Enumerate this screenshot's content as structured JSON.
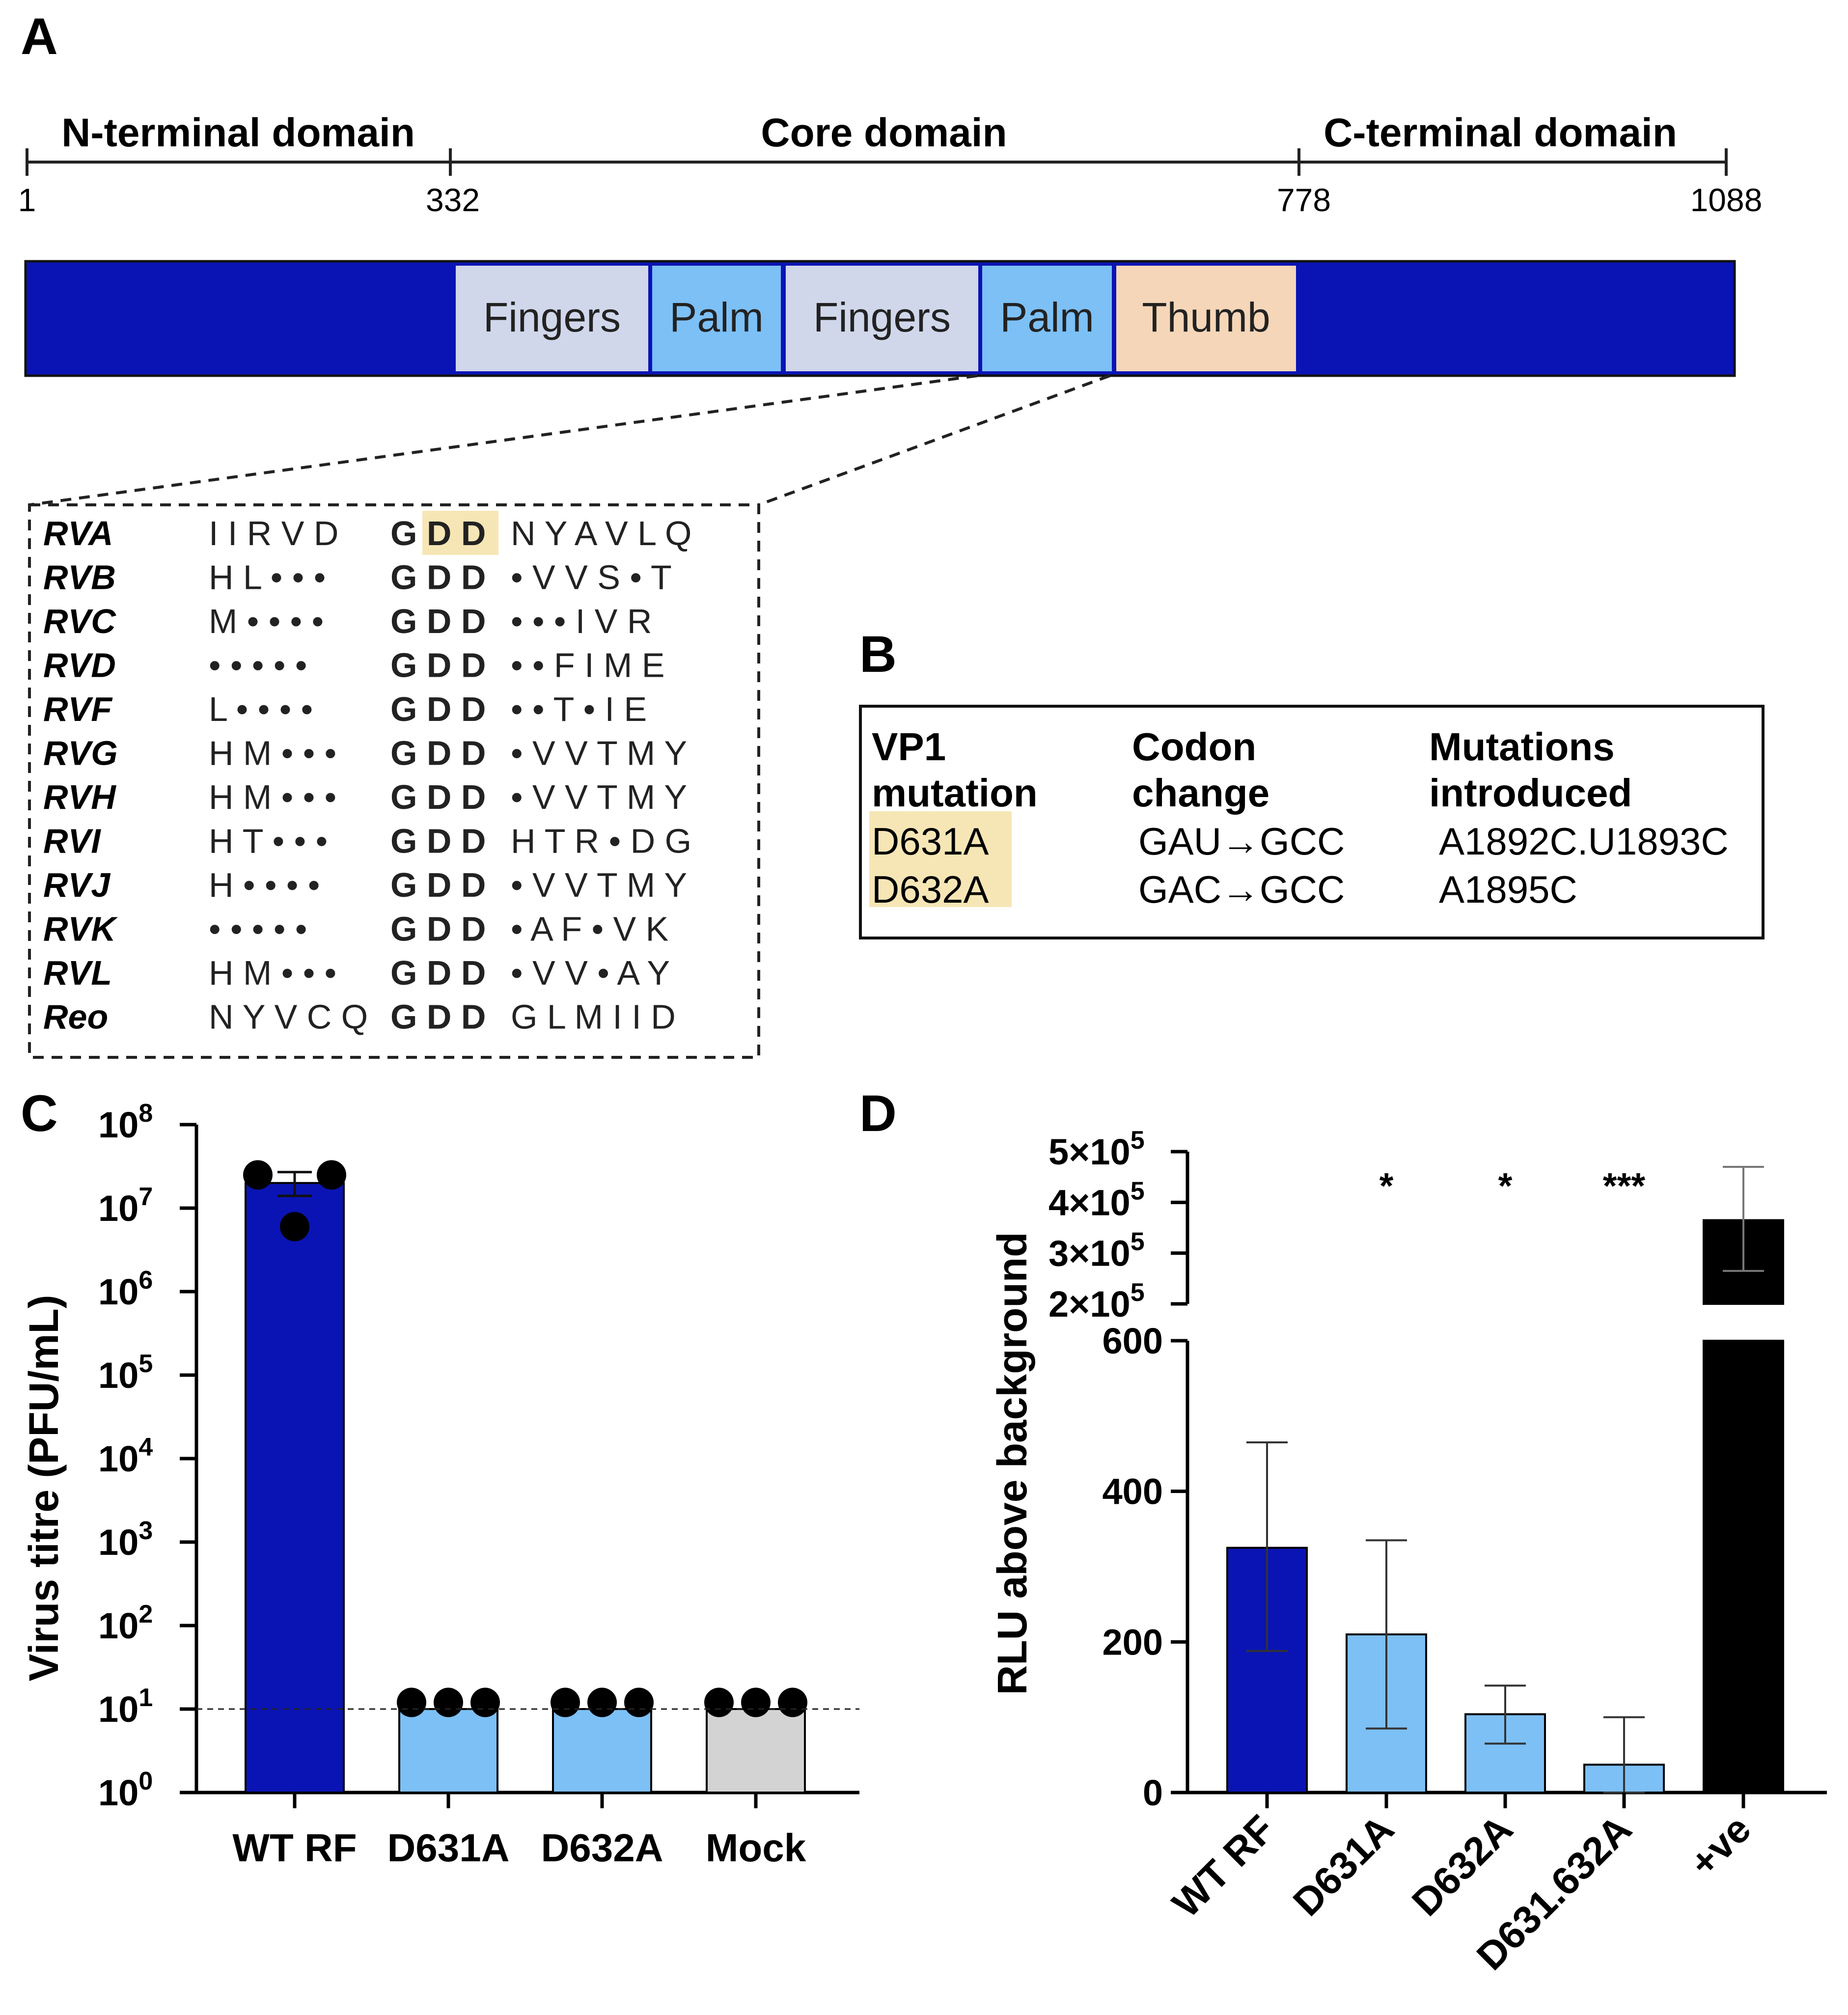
{
  "panels": {
    "a": "A",
    "b": "B",
    "c": "C",
    "d": "D"
  },
  "domain_map": {
    "domains": [
      {
        "label": "N-terminal domain",
        "start": 1,
        "end": 332
      },
      {
        "label": "Core domain",
        "start": 332,
        "end": 778
      },
      {
        "label": "C-terminal domain",
        "start": 778,
        "end": 1088
      }
    ],
    "positions": [
      "1",
      "332",
      "778",
      "1088"
    ],
    "segments": [
      "Fingers",
      "Palm",
      "Fingers",
      "Palm",
      "Thumb"
    ],
    "colors": {
      "terminal": "#0a14b4",
      "fingers": "#d0d7eb",
      "palm": "#7cc0f6",
      "thumb": "#f5d6b8"
    }
  },
  "alignment": {
    "rows": [
      {
        "name": "RVA",
        "pre": "I  I R V D",
        "motif": "G D D",
        "post": "N Y A  V L Q"
      },
      {
        "name": "RVB",
        "pre": "H L • • •",
        "motif": "G D D",
        "post": "• V V  S • T"
      },
      {
        "name": "RVC",
        "pre": "M • • • •",
        "motif": "G D D",
        "post": "• • •  I V R"
      },
      {
        "name": "RVD",
        "pre": "• • • • •",
        "motif": "G D D",
        "post": "• • F  I M E"
      },
      {
        "name": "RVF",
        "pre": "L • • • •",
        "motif": "G D D",
        "post": "• • T  •  I E"
      },
      {
        "name": "RVG",
        "pre": "H M • • •",
        "motif": "G D D",
        "post": "• V V  T M Y"
      },
      {
        "name": "RVH",
        "pre": "H M • • •",
        "motif": "G D D",
        "post": "• V V  T M Y"
      },
      {
        "name": "RVI",
        "pre": "H T • • •",
        "motif": "G D D",
        "post": "H T R  • D G"
      },
      {
        "name": "RVJ",
        "pre": "H • • • •",
        "motif": "G D D",
        "post": "• V V  T M Y"
      },
      {
        "name": "RVK",
        "pre": "• • • • •",
        "motif": "G D D",
        "post": "• A F  • V K"
      },
      {
        "name": "RVL",
        "pre": "H M • • •",
        "motif": "G D D",
        "post": "• V V  • A Y"
      },
      {
        "name": "Reo",
        "pre": "N Y V C Q",
        "motif": "G D D",
        "post": "G L M  I  I D"
      }
    ],
    "highlight_color": "#f7e6b5"
  },
  "mutation_table": {
    "headers": [
      [
        "VP1",
        "mutation"
      ],
      [
        "Codon",
        "change"
      ],
      [
        "Mutations",
        "introduced"
      ]
    ],
    "rows": [
      [
        "D631A",
        "GAU→GCC",
        "A1892C.U1893C"
      ],
      [
        "D632A",
        "GAC→GCC",
        "A1895C"
      ]
    ]
  },
  "chart_data": [
    {
      "type": "bar",
      "ylabel": "Virus titre (PFU/mL)",
      "yscale": "log",
      "ylim": [
        1,
        100000000
      ],
      "yticks": [
        "10",
        "10",
        "10",
        "10",
        "10",
        "10",
        "10",
        "10",
        "10"
      ],
      "yexponents": [
        "0",
        "1",
        "2",
        "3",
        "4",
        "5",
        "6",
        "7",
        "8"
      ],
      "categories": [
        "WT RF",
        "D631A",
        "D632A",
        "Mock"
      ],
      "values": [
        20000000,
        10,
        10,
        10
      ],
      "error": [
        [
          14000000,
          27000000
        ],
        null,
        null,
        null
      ],
      "points": [
        [
          25000000,
          25000000,
          6000000
        ],
        [
          12,
          12,
          12
        ],
        [
          12,
          12,
          12
        ],
        [
          12,
          12,
          12
        ]
      ],
      "detection_limit": 10,
      "colors": [
        "#0a14b4",
        "#7cc0f6",
        "#7cc0f6",
        "#d3d3d3"
      ]
    },
    {
      "type": "bar",
      "ylabel": "RLU above background",
      "broken_axis": true,
      "ylim_lower": [
        0,
        600
      ],
      "ylim_upper": [
        200000,
        500000
      ],
      "yticks_lower": [
        "0",
        "200",
        "400",
        "600"
      ],
      "yticks_upper": [
        {
          "mantissa": "2×10",
          "exp": "5"
        },
        {
          "mantissa": "3×10",
          "exp": "5"
        },
        {
          "mantissa": "4×10",
          "exp": "5"
        },
        {
          "mantissa": "5×10",
          "exp": "5"
        }
      ],
      "categories": [
        "WT RF",
        "D631A",
        "D632A",
        "D631.632A",
        "+ve"
      ],
      "values": [
        325,
        210,
        104,
        37,
        365000
      ],
      "error": [
        [
          188,
          465
        ],
        [
          85,
          335
        ],
        [
          65,
          142
        ],
        [
          0,
          100
        ],
        [
          265000,
          470000
        ]
      ],
      "significance": [
        "",
        "*",
        "*",
        "***",
        ""
      ],
      "colors": [
        "#0a14b4",
        "#7cc0f6",
        "#7cc0f6",
        "#7cc0f6",
        "#000000"
      ]
    }
  ]
}
